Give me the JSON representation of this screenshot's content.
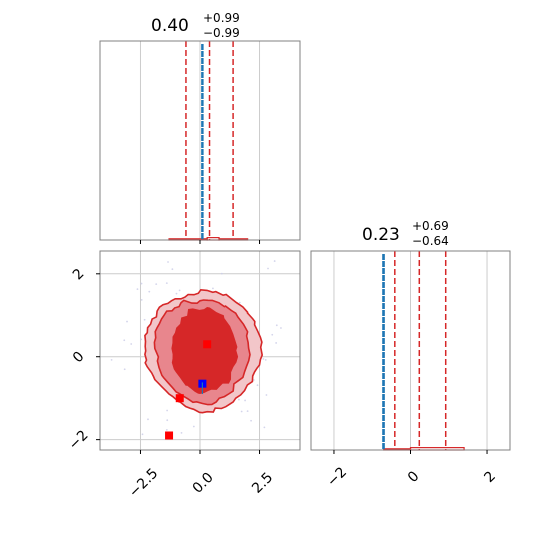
{
  "chart_data": [
    {
      "type": "histogram",
      "panel": "top-left marginal",
      "title": {
        "median": "0.40",
        "upper": "+0.99",
        "lower": "−0.99"
      },
      "xlim": [
        -4.2,
        4.2
      ],
      "x_ticks": [
        -2.5,
        0.0,
        2.5
      ],
      "quantile_lines": [
        -0.59,
        0.4,
        1.39
      ],
      "truth_lines": [
        0.08,
        0.12
      ],
      "bins": [
        {
          "x0": -1.3,
          "x1": 0.3,
          "h": 0.006
        },
        {
          "x0": 0.3,
          "x1": 0.8,
          "h": 0.012
        },
        {
          "x0": 0.8,
          "x1": 2.0,
          "h": 0.006
        }
      ],
      "grid": true
    },
    {
      "type": "contour",
      "panel": "bottom-left 2d",
      "xlim": [
        -4.2,
        4.2
      ],
      "ylim": [
        -2.25,
        2.55
      ],
      "x_ticks": [
        -2.5,
        0.0,
        2.5
      ],
      "y_ticks": [
        -2,
        0,
        2
      ],
      "x_tick_labels": [
        "−2.5",
        "0.0",
        "2.5"
      ],
      "y_tick_labels": [
        "−2",
        "0",
        "2"
      ],
      "contour_levels": [
        {
          "level": "outer",
          "fill": "#f2c6c9",
          "points": [
            [
              -2.3,
              0.25
            ],
            [
              -2.2,
              0.7
            ],
            [
              -1.8,
              1.1
            ],
            [
              -1.2,
              1.35
            ],
            [
              -0.5,
              1.5
            ],
            [
              0.3,
              1.6
            ],
            [
              1.1,
              1.5
            ],
            [
              1.8,
              1.2
            ],
            [
              2.3,
              0.85
            ],
            [
              2.6,
              0.35
            ],
            [
              2.5,
              -0.2
            ],
            [
              2.2,
              -0.6
            ],
            [
              1.5,
              -1.0
            ],
            [
              0.9,
              -1.25
            ],
            [
              0.1,
              -1.35
            ],
            [
              -0.6,
              -1.2
            ],
            [
              -1.3,
              -0.9
            ],
            [
              -1.9,
              -0.55
            ],
            [
              -2.3,
              -0.15
            ]
          ]
        },
        {
          "level": "middle",
          "fill": "#e8868d",
          "points": [
            [
              -1.9,
              0.2
            ],
            [
              -1.8,
              0.7
            ],
            [
              -1.4,
              1.1
            ],
            [
              -0.8,
              1.3
            ],
            [
              0.0,
              1.35
            ],
            [
              0.8,
              1.3
            ],
            [
              1.5,
              1.05
            ],
            [
              2.0,
              0.6
            ],
            [
              2.1,
              0.05
            ],
            [
              1.8,
              -0.5
            ],
            [
              1.2,
              -0.9
            ],
            [
              0.5,
              -1.15
            ],
            [
              -0.3,
              -1.1
            ],
            [
              -1.0,
              -0.85
            ],
            [
              -1.6,
              -0.45
            ]
          ]
        },
        {
          "level": "inner",
          "fill": "#d62728",
          "points": [
            [
              -1.2,
              0.2
            ],
            [
              -1.0,
              0.7
            ],
            [
              -0.5,
              1.15
            ],
            [
              0.3,
              1.2
            ],
            [
              1.0,
              1.0
            ],
            [
              1.4,
              0.55
            ],
            [
              1.6,
              0.0
            ],
            [
              1.3,
              -0.55
            ],
            [
              0.7,
              -0.8
            ],
            [
              0.0,
              -0.9
            ],
            [
              -0.6,
              -0.7
            ],
            [
              -1.1,
              -0.3
            ]
          ]
        }
      ],
      "markers": [
        {
          "x": 0.3,
          "y": 0.3,
          "color": "#ff0000"
        },
        {
          "x": -0.85,
          "y": -1.0,
          "color": "#ff0000"
        },
        {
          "x": -1.3,
          "y": -1.9,
          "color": "#ff0000"
        },
        {
          "x": 0.1,
          "y": -0.65,
          "color": "#0000ff"
        }
      ],
      "truth_line_x": 0.1,
      "grid": true
    },
    {
      "type": "histogram",
      "panel": "bottom-right marginal",
      "title": {
        "median": "0.23",
        "upper": "+0.69",
        "lower": "−0.64"
      },
      "xlim": [
        -2.6,
        2.6
      ],
      "x_ticks": [
        -2,
        0,
        2
      ],
      "x_tick_labels": [
        "−2",
        "0",
        "2"
      ],
      "quantile_lines": [
        -0.41,
        0.23,
        0.92
      ],
      "truth_lines": [
        -0.72,
        -0.69
      ],
      "bins": [
        {
          "x0": -0.7,
          "x1": 0.0,
          "h": 0.006
        },
        {
          "x0": 0.0,
          "x1": 1.4,
          "h": 0.012
        }
      ],
      "grid": true
    }
  ],
  "colors": {
    "main": "#d62728",
    "truth": "#1f77b4",
    "grid": "#cccccc",
    "frame": "#808080"
  }
}
